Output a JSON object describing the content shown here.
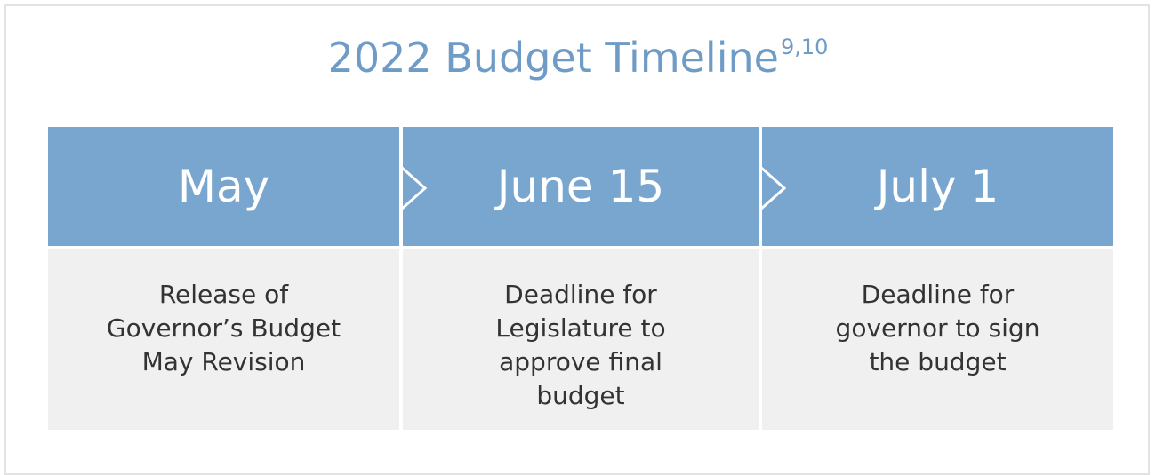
{
  "title": "2022 Budget Timeline",
  "title_superscript": "9,10",
  "steps": [
    {
      "date": "May",
      "description": [
        "Release of",
        "Governor’s Budget",
        "May Revision"
      ]
    },
    {
      "date": "June 15",
      "description": [
        "Deadline for",
        "Legislature to",
        "approve final",
        "budget"
      ]
    },
    {
      "date": "July 1",
      "description": [
        "Deadline for",
        "governor to sign",
        "the budget"
      ]
    }
  ]
}
